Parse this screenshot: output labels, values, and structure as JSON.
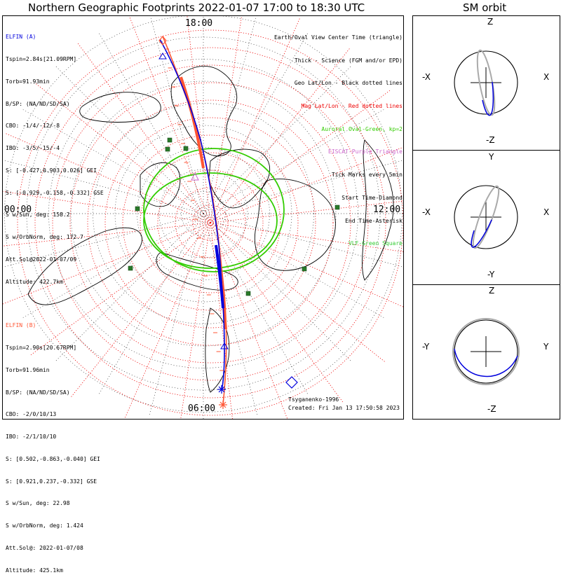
{
  "title_main": "Northern Geographic Footprints 2022-01-07 17:00 to 18:30 UTC",
  "title_sm": "SM orbit",
  "colors": {
    "elfin_a": "#0000dd",
    "elfin_b": "#ff5533",
    "geo_grid": "#000000",
    "mag_grid": "#ee0000",
    "oval": "#33cc00",
    "vlf": "#2a7a2a",
    "eiscat": "#cc66cc"
  },
  "legend": {
    "l1": "Earth/Oval View Center Time (triangle)",
    "l2": "Thick - Science (FGM and/or EPD)",
    "l3": "Geo Lat/Lon - Black dotted lines",
    "l4": "Mag Lat/Lon - Red dotted lines",
    "l5": "Auroral Oval-Green, kp=2",
    "l6": "EISCAT-Purple Triangle",
    "l7": "Tick Marks every 5min",
    "l8": "Start Time-Diamond",
    "l9": "End Time-Asterisk",
    "l10": "VLF-Green Square"
  },
  "elfin_a": {
    "name": "ELFIN (A)",
    "tspin": "Tspin=2.84s[21.09RPM]",
    "torb": "Torb=91.93min",
    "bsp": "B/SP: (NA/ND/SD/SA)",
    "cbo": "CBO: -1/4/-12/-8",
    "ibo": "IBO: -3/5/-15/-4",
    "s_gei": "S: [-0.427,0.903,0.026] GEI",
    "s_gse": "S: [-0.929,-0.158,-0.332] GSE",
    "sun": "S w/Sun, deg: 158.2",
    "orbnorm": "S w/OrbNorm, deg: 172.7",
    "attsol": "Att.Sol@2022-01-07/09",
    "alt": "Altitude: 422.7km"
  },
  "elfin_b": {
    "name": "ELFIN (B)",
    "tspin": "Tspin=2.90s[20.67RPM]",
    "torb": "Torb=91.96min",
    "bsp": "B/SP: (NA/ND/SD/SA)",
    "cbo": "CBO: -2/0/10/13",
    "ibo": "IBO: -2/1/10/10",
    "s_gei": "S: [0.502,-0.863,-0.040] GEI",
    "s_gse": "S: [0.921,0.237,-0.332] GSE",
    "sun": "S w/Sun, deg: 22.98",
    "orbnorm": "S w/OrbNorm, deg: 1.424",
    "attsol": "Att.Sol@: 2022-01-07/08",
    "alt": "Altitude: 425.1km"
  },
  "time_labels": {
    "top": "18:00",
    "left": "00:00",
    "right": "12:00",
    "bottom": "06:00"
  },
  "credit": {
    "author": "Tsyganenko-1996",
    "created": "Created: Fri Jan 13 17:50:58 2023"
  },
  "sm_panels": [
    {
      "top": "Z",
      "bottom": "-Z",
      "left": "-X",
      "right": "X"
    },
    {
      "top": "Y",
      "bottom": "-Y",
      "left": "-X",
      "right": "X"
    },
    {
      "top": "Z",
      "bottom": "-Z",
      "left": "-Y",
      "right": "Y"
    }
  ],
  "chart_data": {
    "type": "polar-map",
    "projection": "north polar stereographic, geographic",
    "local_time_labels": [
      "18:00",
      "00:00",
      "12:00",
      "06:00"
    ],
    "geo_lat_circles_deg": [
      80,
      70,
      60,
      50,
      40,
      30,
      20,
      10,
      0
    ],
    "mag_grid": "red dotted",
    "auroral_oval_kp": 2,
    "tick_interval_min": 5,
    "series": [
      {
        "name": "ELFIN (A)",
        "color": "#0000dd"
      },
      {
        "name": "ELFIN (B)",
        "color": "#ff5533"
      }
    ]
  }
}
